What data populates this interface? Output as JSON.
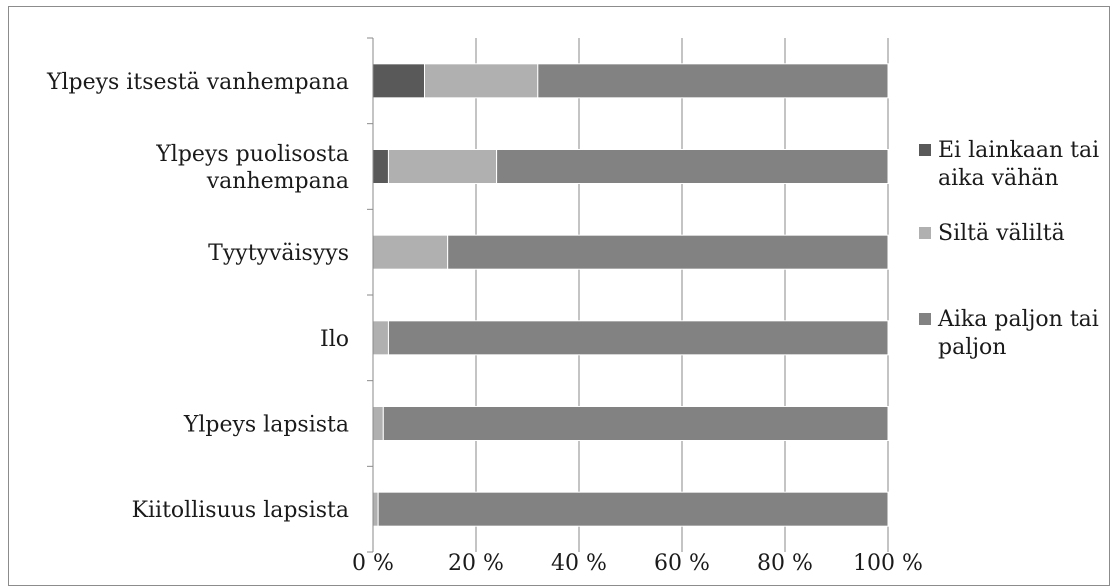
{
  "chart_data": {
    "type": "bar",
    "orientation": "horizontal",
    "stacked": "percent",
    "categories": [
      "Ylpeys itsestä vanhempana",
      "Ylpeys puolisosta vanhempana",
      "Tyytyväisyys",
      "Ilo",
      "Ylpeys lapsista",
      "Kiitollisuus lapsista"
    ],
    "category_display": [
      [
        "Ylpeys itsestä vanhempana"
      ],
      [
        "Ylpeys puolisosta",
        "vanhempana"
      ],
      [
        "Tyytyväisyys"
      ],
      [
        "Ilo"
      ],
      [
        "Ylpeys lapsista"
      ],
      [
        "Kiitollisuus lapsista"
      ]
    ],
    "series": [
      {
        "name": "Ei lainkaan tai aika vähän",
        "name_lines": [
          "Ei lainkaan tai",
          "aika vähän"
        ],
        "color": "#595959",
        "values": [
          10,
          3,
          0,
          0,
          0,
          0
        ]
      },
      {
        "name": "Siltä väliltä",
        "name_lines": [
          "Siltä väliltä"
        ],
        "color": "#b0b0b0",
        "values": [
          22,
          21,
          14.5,
          3,
          2,
          1
        ]
      },
      {
        "name": "Aika paljon tai paljon",
        "name_lines": [
          "Aika paljon tai",
          "paljon"
        ],
        "color": "#828282",
        "values": [
          68,
          76,
          85.5,
          97,
          98,
          99
        ]
      }
    ],
    "xlim": [
      0,
      100
    ],
    "xticks": [
      "0 %",
      "20 %",
      "40 %",
      "60 %",
      "80 %",
      "100 %"
    ],
    "grid": true,
    "legend_position": "right"
  }
}
